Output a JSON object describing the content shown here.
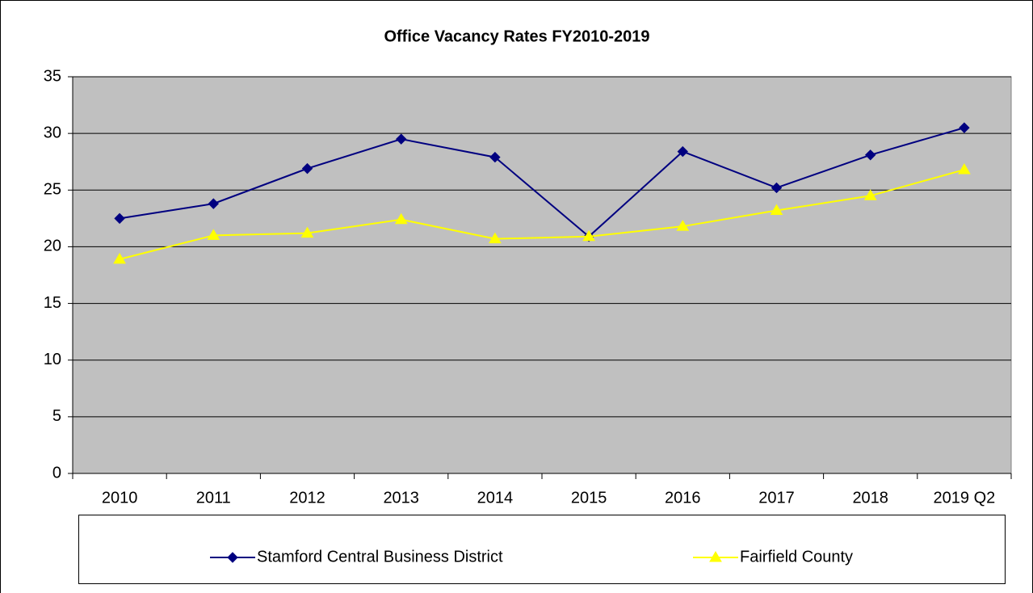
{
  "chart_data": {
    "type": "line",
    "title": "Office Vacancy Rates FY2010-2019",
    "categories": [
      "2010",
      "2011",
      "2012",
      "2013",
      "2014",
      "2015",
      "2016",
      "2017",
      "2018",
      "2019 Q2"
    ],
    "series": [
      {
        "name": "Stamford Central Business District",
        "color": "#000080",
        "marker": "diamond",
        "values": [
          22.5,
          23.8,
          26.9,
          29.5,
          27.9,
          20.9,
          28.4,
          25.2,
          28.1,
          30.5
        ]
      },
      {
        "name": "Fairfield County",
        "color": "#ffff00",
        "marker": "triangle",
        "values": [
          18.9,
          21.0,
          21.2,
          22.4,
          20.7,
          20.9,
          21.8,
          23.2,
          24.5,
          26.8
        ]
      }
    ],
    "ylim": [
      0,
      35
    ],
    "yticks": [
      0,
      5,
      10,
      15,
      20,
      25,
      30,
      35
    ],
    "grid": true,
    "legend": "bottom"
  }
}
